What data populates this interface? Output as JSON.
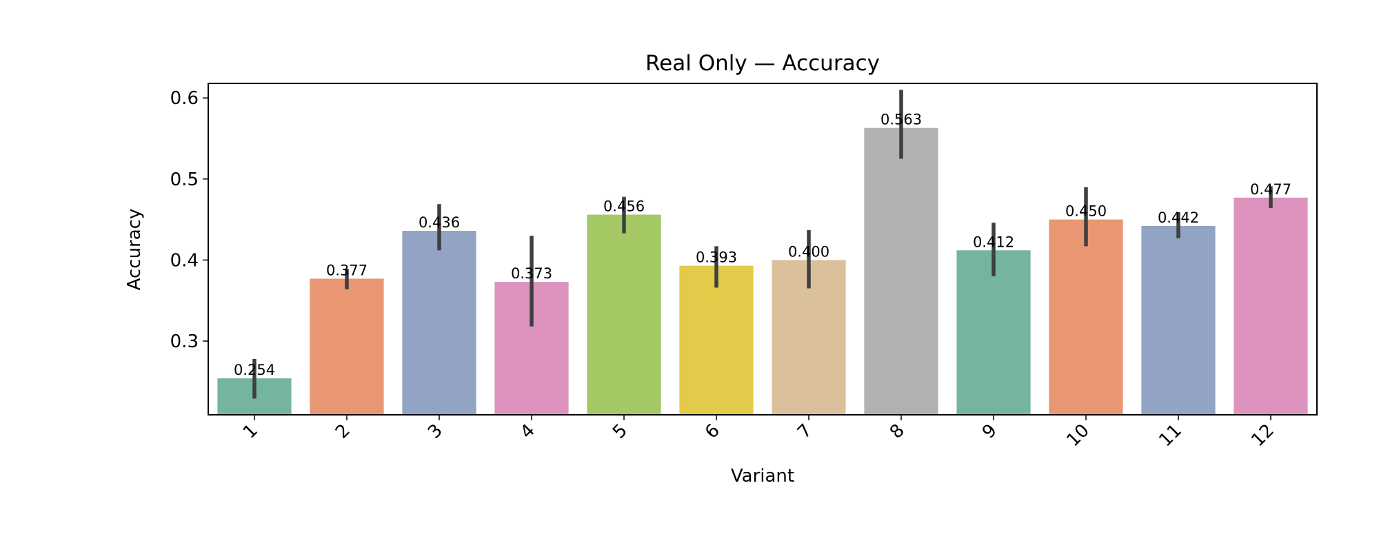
{
  "chart_data": {
    "type": "bar",
    "title": "Real Only — Accuracy",
    "xlabel": "Variant",
    "ylabel": "Accuracy",
    "categories": [
      "1",
      "2",
      "3",
      "4",
      "5",
      "6",
      "7",
      "8",
      "9",
      "10",
      "11",
      "12"
    ],
    "values": [
      0.254,
      0.377,
      0.436,
      0.373,
      0.456,
      0.393,
      0.4,
      0.563,
      0.412,
      0.45,
      0.442,
      0.477
    ],
    "value_labels": [
      "0.254",
      "0.377",
      "0.436",
      "0.373",
      "0.456",
      "0.393",
      "0.400",
      "0.563",
      "0.412",
      "0.450",
      "0.442",
      "0.477"
    ],
    "error_low": [
      0.229,
      0.364,
      0.412,
      0.318,
      0.433,
      0.366,
      0.365,
      0.525,
      0.38,
      0.417,
      0.427,
      0.464
    ],
    "error_high": [
      0.278,
      0.389,
      0.469,
      0.43,
      0.478,
      0.417,
      0.437,
      0.61,
      0.446,
      0.49,
      0.459,
      0.491
    ],
    "colors": [
      "#75b5a0",
      "#e99673",
      "#93a3c3",
      "#dc93be",
      "#a3c864",
      "#e3ca48",
      "#dbc19b",
      "#b1b1b1",
      "#75b5a0",
      "#e99673",
      "#93a3c3",
      "#dc93be"
    ],
    "error_color": "#3f3f3f",
    "ylim": [
      0.209,
      0.618
    ],
    "yticks": [
      0.3,
      0.4,
      0.5,
      0.6
    ],
    "ytick_labels": [
      "0.3",
      "0.4",
      "0.5",
      "0.6"
    ],
    "grid": false,
    "legend": "none"
  }
}
